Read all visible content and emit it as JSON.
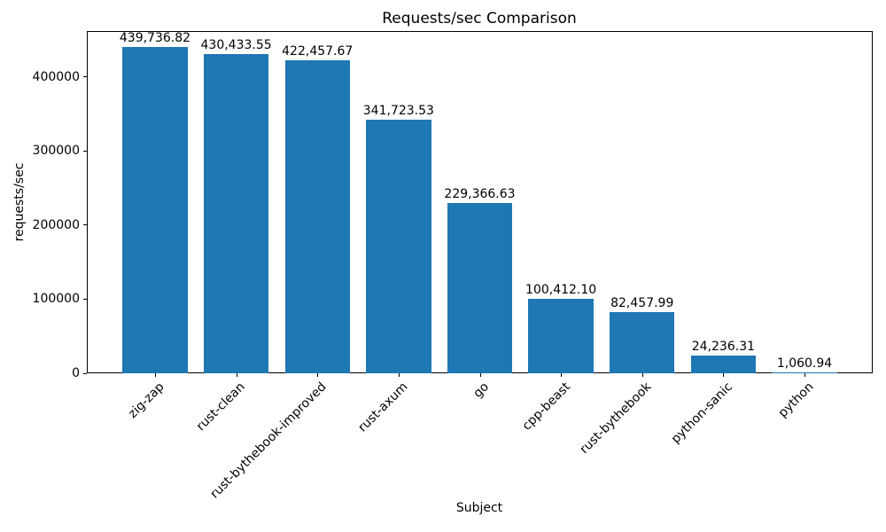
{
  "chart_data": {
    "type": "bar",
    "title": "Requests/sec Comparison",
    "xlabel": "Subject",
    "ylabel": "requests/sec",
    "categories": [
      "zig-zap",
      "rust-clean",
      "rust-bythebook-improved",
      "rust-axum",
      "go",
      "cpp-beast",
      "rust-bythebook",
      "python-sanic",
      "python"
    ],
    "values": [
      439736.82,
      430433.55,
      422457.67,
      341723.53,
      229366.63,
      100412.1,
      82457.99,
      24236.31,
      1060.94
    ],
    "value_labels": [
      "439,736.82",
      "430,433.55",
      "422,457.67",
      "341,723.53",
      "229,366.63",
      "100,412.10",
      "82,457.99",
      "24,236.31",
      "1,060.94"
    ],
    "yticks": [
      0,
      100000,
      200000,
      300000,
      400000
    ],
    "ylim": [
      0,
      461723.66
    ],
    "xtick_rotation": 45,
    "bar_color": "#1f77b4",
    "grid": false,
    "legend_position": "none"
  }
}
